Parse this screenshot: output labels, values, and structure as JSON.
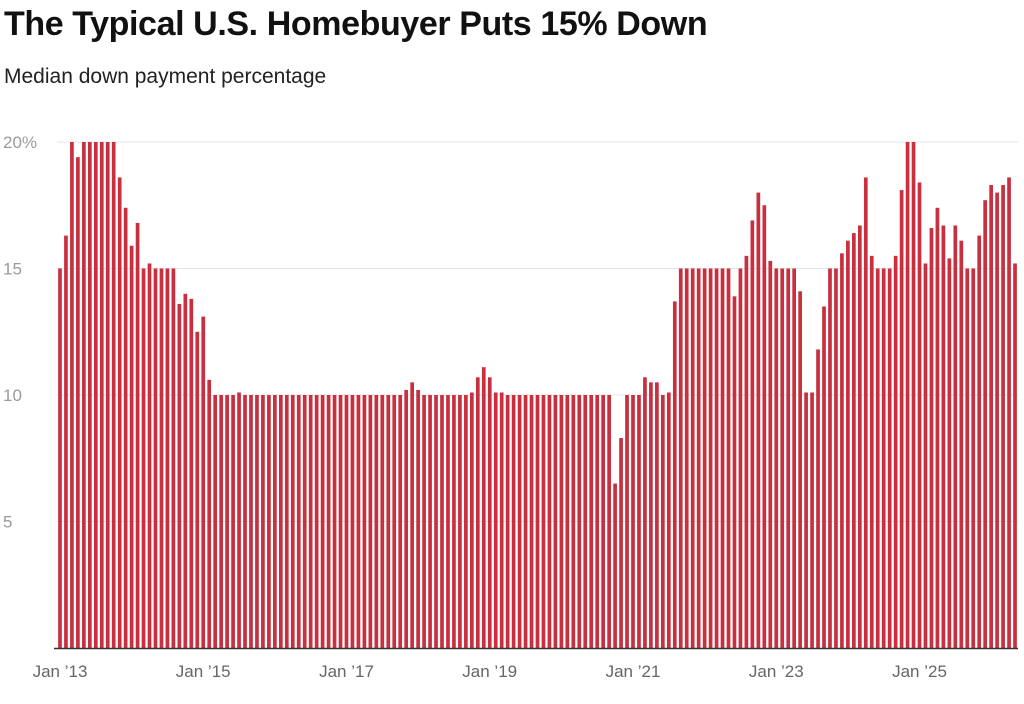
{
  "title": "The Typical U.S. Homebuyer Puts 15% Down",
  "subtitle": "Median down payment percentage",
  "colors": {
    "bar": "#c9303f",
    "grid": "#e4e4e4",
    "axis": "#333333",
    "text": "#111111",
    "tick_text": "#9a9a9a"
  },
  "chart_data": {
    "type": "bar",
    "title": "The Typical U.S. Homebuyer Puts 15% Down",
    "subtitle": "Median down payment percentage",
    "xlabel": "",
    "ylabel": "",
    "ylim": [
      0,
      20
    ],
    "grid": true,
    "y_ticks": [
      {
        "value": 20,
        "label": "20%"
      },
      {
        "value": 15,
        "label": "15"
      },
      {
        "value": 10,
        "label": "10"
      },
      {
        "value": 5,
        "label": "5"
      }
    ],
    "x_ticks": [
      {
        "index": 0,
        "label": "Jan ’13"
      },
      {
        "index": 24,
        "label": "Jan ’15"
      },
      {
        "index": 48,
        "label": "Jan ’17"
      },
      {
        "index": 72,
        "label": "Jan ’19"
      },
      {
        "index": 96,
        "label": "Jan ’21"
      },
      {
        "index": 120,
        "label": "Jan ’23"
      },
      {
        "index": 144,
        "label": "Jan ’25"
      }
    ],
    "start": "Jan 2013",
    "frequency": "monthly",
    "series": [
      {
        "name": "Median down payment percentage",
        "values": [
          15,
          16.3,
          20,
          19.4,
          20,
          20,
          20,
          20,
          20,
          20,
          18.6,
          17.4,
          15.9,
          16.8,
          15,
          15.2,
          15,
          15,
          15,
          15,
          13.6,
          14,
          13.8,
          12.5,
          13.1,
          10.6,
          10,
          10,
          10,
          10,
          10.1,
          10,
          10,
          10,
          10,
          10,
          10,
          10,
          10,
          10,
          10,
          10,
          10,
          10,
          10,
          10,
          10,
          10,
          10,
          10,
          10,
          10,
          10,
          10,
          10,
          10,
          10,
          10,
          10.2,
          10.5,
          10.2,
          10,
          10,
          10,
          10,
          10,
          10,
          10,
          10,
          10.1,
          10.7,
          11.1,
          10.7,
          10.1,
          10.1,
          10,
          10,
          10,
          10,
          10,
          10,
          10,
          10,
          10,
          10,
          10,
          10,
          10,
          10,
          10,
          10,
          10,
          10,
          6.5,
          8.3,
          10,
          10,
          10,
          10.7,
          10.5,
          10.5,
          10,
          10.1,
          13.7,
          15,
          15,
          15,
          15,
          15,
          15,
          15,
          15,
          15,
          13.9,
          15,
          15.5,
          16.9,
          18,
          17.5,
          15.3,
          15,
          15,
          15,
          15,
          14.1,
          10.1,
          10.1,
          11.8,
          13.5,
          15,
          15,
          15.6,
          16.1,
          16.4,
          16.7,
          18.6,
          15.5,
          15,
          15,
          15,
          15.5,
          18.1,
          20,
          20,
          18.4,
          15.2,
          16.6,
          17.4,
          16.7,
          15.4,
          16.7,
          16.1,
          15,
          15,
          16.3,
          17.7,
          18.3,
          18,
          18.3,
          18.6,
          15.2
        ]
      }
    ]
  }
}
